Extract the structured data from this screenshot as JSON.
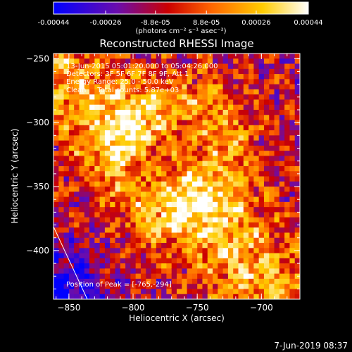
{
  "colorbar": {
    "tick_labels": [
      "-0.00044",
      "-0.00026",
      "-8.8e-05",
      "8.8e-05",
      "0.00026",
      "0.00044"
    ],
    "tick_values": [
      -0.00044,
      -0.00026,
      -8.8e-05,
      8.8e-05,
      0.00026,
      0.00044
    ],
    "min": -0.00044,
    "max": 0.00044,
    "unit_label": "(photons cm⁻² s⁻¹ asec⁻²)"
  },
  "chart_data": {
    "type": "heatmap",
    "title": "Reconstructed RHESSI Image",
    "xlabel": "Heliocentric X (arcsec)",
    "ylabel": "Heliocentric Y (arcsec)",
    "xlim": [
      -862,
      -670
    ],
    "ylim": [
      -438,
      -246
    ],
    "x_ticks": [
      -850,
      -800,
      -750,
      -700
    ],
    "y_ticks": [
      -250,
      -300,
      -350,
      -400
    ],
    "x_tick_labels": [
      "−850",
      "−800",
      "−750",
      "−700"
    ],
    "y_tick_labels": [
      "−250",
      "−300",
      "−350",
      "−400"
    ],
    "colormap": "rhessi-hot",
    "peak": {
      "x": -765,
      "y": -294
    },
    "grid": false,
    "annotations": [
      "13-Jun-2015 05:01:20.000 to 05:04:26.000",
      "Detectors: 3F 5F 6F 7F 8F 9F, Att 1",
      "Energy Range: 25.0 - 50.0 keV",
      "Clean     Total counts: 5.87e+03",
      "Position of Peak = [-765,-294]"
    ],
    "colors": {
      "background": "#000000",
      "axes": "#ffffff",
      "limb_line": "#ffffff",
      "cmap_stops": [
        "#0000ff",
        "#6a0dad",
        "#cc0000",
        "#ff6600",
        "#ffcc00",
        "#ffffff"
      ]
    }
  },
  "footer": {
    "timestamp": "7-Jun-2019 08:37"
  }
}
